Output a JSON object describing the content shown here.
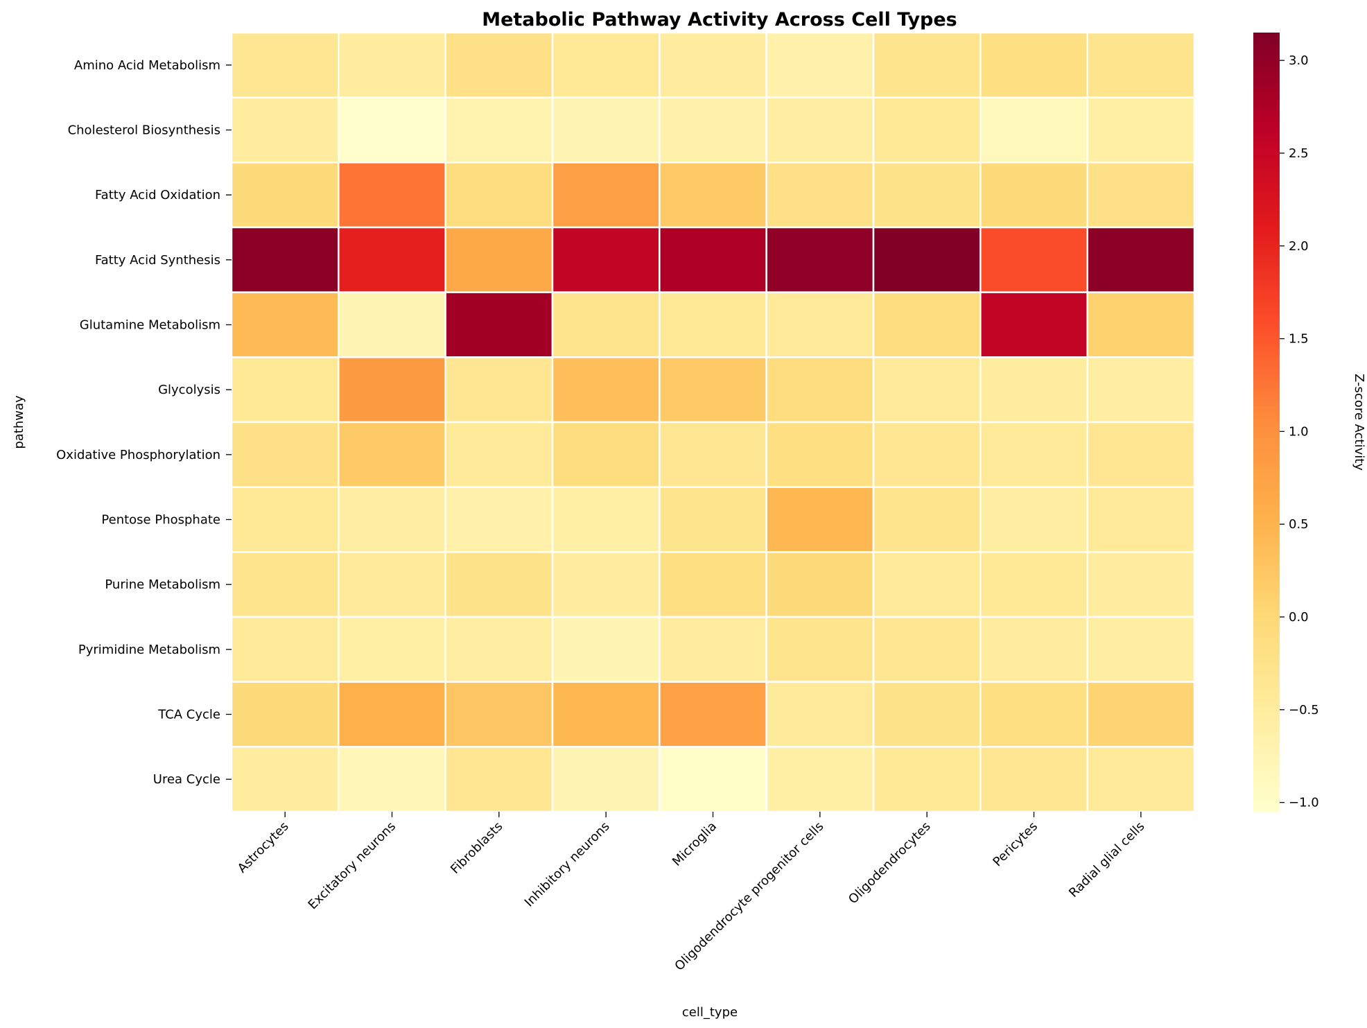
{
  "chart_data": {
    "type": "heatmap",
    "title": "Metabolic Pathway Activity Across Cell Types",
    "xlabel": "cell_type",
    "ylabel": "pathway",
    "colorbar_label": "Z-score Activity",
    "colormap": "YlOrRd",
    "vmin": -1.05,
    "vmax": 3.15,
    "colorbar_ticks": [
      "−1.0",
      "−0.5",
      "0.0",
      "0.5",
      "1.0",
      "1.5",
      "2.0",
      "2.5",
      "3.0"
    ],
    "colorbar_tick_values": [
      -1.0,
      -0.5,
      0.0,
      0.5,
      1.0,
      1.5,
      2.0,
      2.5,
      3.0
    ],
    "grid": true,
    "cell_types": [
      "Astrocytes",
      "Excitatory neurons",
      "Fibroblasts",
      "Inhibitory neurons",
      "Microglia",
      "Oligodendrocyte progenitor cells",
      "Oligodendrocytes",
      "Pericytes",
      "Radial glial cells"
    ],
    "pathways": [
      "Amino Acid Metabolism",
      "Cholesterol Biosynthesis",
      "Fatty Acid Oxidation",
      "Fatty Acid Synthesis",
      "Glutamine Metabolism",
      "Glycolysis",
      "Oxidative Phosphorylation",
      "Pentose Phosphate",
      "Purine Metabolism",
      "Pyrimidine Metabolism",
      "TCA Cycle",
      "Urea Cycle"
    ],
    "values": [
      [
        -0.35,
        -0.5,
        -0.2,
        -0.4,
        -0.5,
        -0.65,
        -0.3,
        -0.15,
        -0.3
      ],
      [
        -0.5,
        -1.05,
        -0.7,
        -0.75,
        -0.65,
        -0.55,
        -0.4,
        -0.85,
        -0.6
      ],
      [
        -0.05,
        1.25,
        -0.1,
        0.8,
        0.2,
        -0.2,
        -0.25,
        -0.05,
        -0.2
      ],
      [
        3.05,
        2.05,
        0.65,
        2.55,
        2.75,
        3.0,
        3.15,
        1.6,
        3.05
      ],
      [
        0.4,
        -0.75,
        2.85,
        -0.3,
        -0.4,
        -0.45,
        -0.1,
        2.55,
        0.1
      ],
      [
        -0.4,
        0.85,
        -0.35,
        0.35,
        0.2,
        -0.1,
        -0.45,
        -0.5,
        -0.55
      ],
      [
        -0.2,
        0.2,
        -0.45,
        -0.1,
        -0.35,
        -0.15,
        -0.35,
        -0.45,
        -0.35
      ],
      [
        -0.4,
        -0.55,
        -0.65,
        -0.6,
        -0.3,
        0.45,
        -0.3,
        -0.55,
        -0.45
      ],
      [
        -0.3,
        -0.45,
        -0.25,
        -0.5,
        -0.15,
        -0.05,
        -0.45,
        -0.4,
        -0.5
      ],
      [
        -0.45,
        -0.6,
        -0.55,
        -0.75,
        -0.5,
        -0.3,
        -0.35,
        -0.5,
        -0.55
      ],
      [
        -0.05,
        0.55,
        0.25,
        0.45,
        0.75,
        -0.45,
        -0.25,
        -0.15,
        0.05
      ],
      [
        -0.5,
        -0.8,
        -0.35,
        -0.75,
        -1.0,
        -0.6,
        -0.4,
        -0.35,
        -0.45
      ]
    ]
  }
}
